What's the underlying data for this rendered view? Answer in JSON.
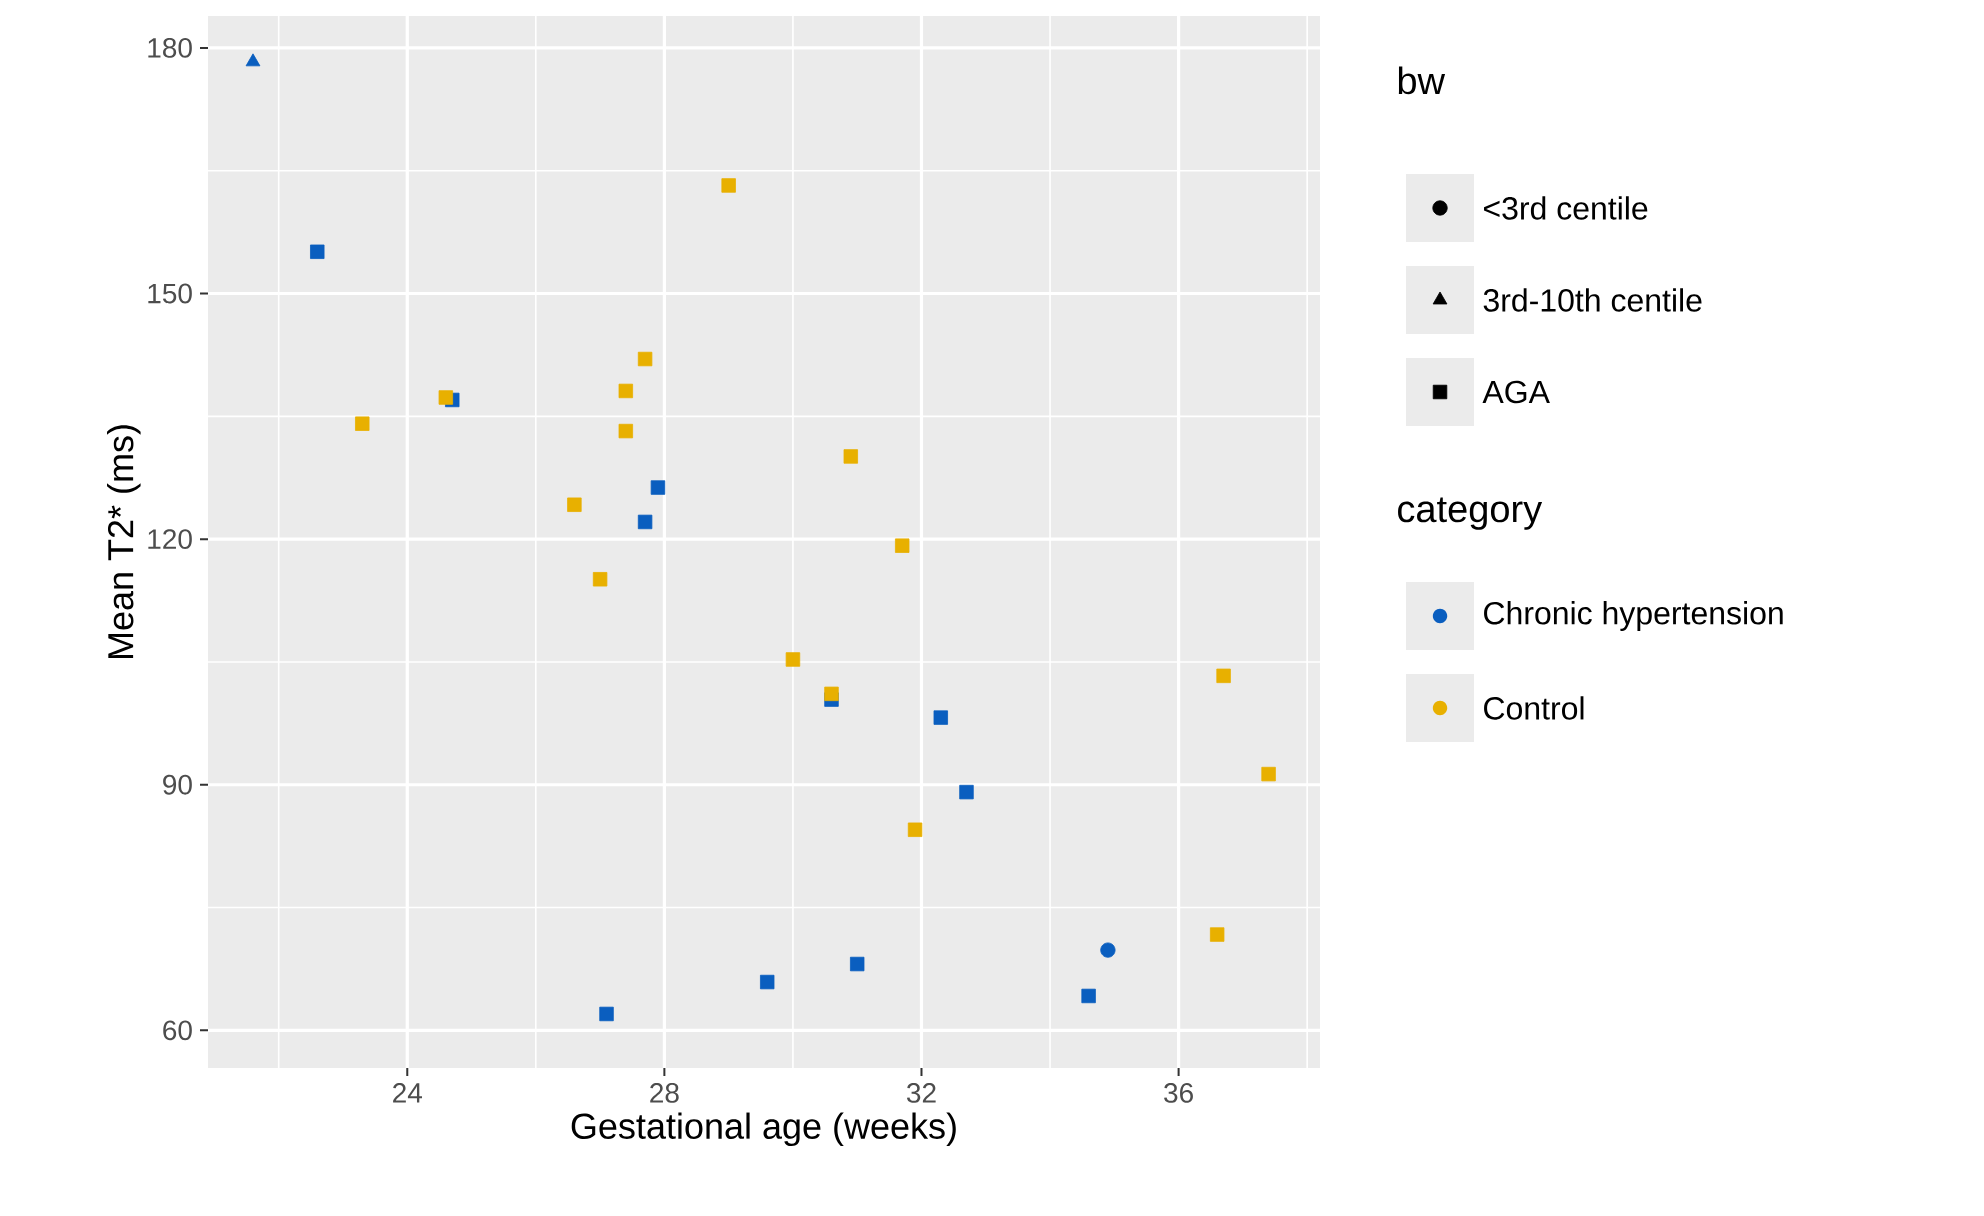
{
  "chart_data": {
    "type": "scatter",
    "xlabel": "Gestational age (weeks)",
    "ylabel": "Mean T2* (ms)",
    "xlim": [
      20.9,
      38.2
    ],
    "ylim": [
      55.4,
      183.9
    ],
    "xticks": [
      24,
      28,
      32,
      36
    ],
    "yticks": [
      60,
      90,
      120,
      150,
      180
    ],
    "grid": true,
    "legend": "right",
    "legend_title": "category",
    "annotations": [
      "bw",
      "<3rd centile",
      "3rd-10th centile",
      "AGA"
    ],
    "series": [
      {
        "marker": "circle",
        "color": "#0a5ebf",
        "x": [
          34.9
        ],
        "values": [
          69.8
        ]
      },
      {
        "marker": "triangle",
        "color": "#0a5ebf",
        "x": [
          21.6
        ],
        "values": [
          178.3
        ]
      },
      {
        "name": "Chronic hypertension",
        "marker": "square",
        "color": "#0a5ebf",
        "x": [
          22.6,
          24.7,
          27.9,
          27.7,
          30.6,
          32.3,
          32.7,
          34.6,
          31.0,
          29.6,
          27.1
        ],
        "values": [
          155.1,
          137.0,
          126.3,
          122.1,
          100.4,
          98.2,
          89.1,
          64.2,
          68.1,
          65.9,
          62.0
        ]
      },
      {
        "name": "Control",
        "marker": "square",
        "color": "#e8b000",
        "x": [
          29.0,
          23.3,
          24.6,
          27.7,
          27.4,
          27.4,
          26.6,
          27.0,
          30.9,
          31.7,
          30.0,
          30.6,
          31.9,
          36.7,
          37.4,
          36.6
        ],
        "values": [
          163.2,
          134.1,
          137.3,
          142.0,
          138.1,
          133.2,
          124.2,
          115.1,
          130.1,
          119.2,
          105.3,
          101.1,
          84.5,
          103.3,
          91.3,
          71.7
        ]
      }
    ]
  }
}
